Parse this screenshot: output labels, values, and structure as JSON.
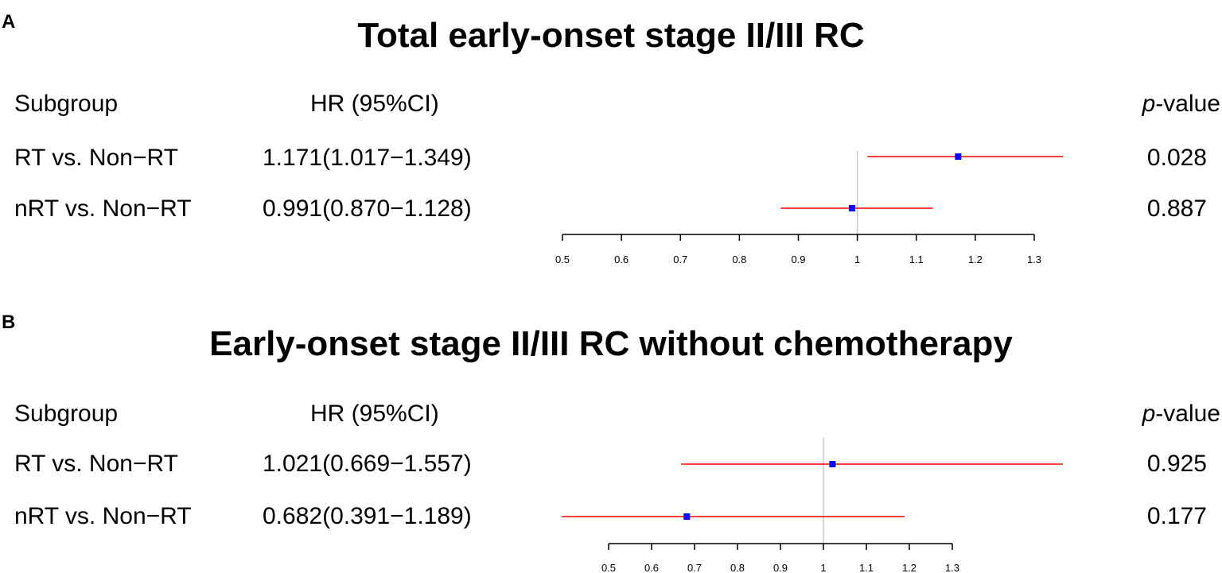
{
  "chart_data": [
    {
      "type": "forest",
      "panel": "A",
      "title": "Total early-onset stage II/III RC",
      "headers": {
        "subgroup": "Subgroup",
        "hr": "HR (95%CI)",
        "p_prefix": "p",
        "p_suffix": "-value"
      },
      "rows": [
        {
          "subgroup": "RT vs. Non−RT",
          "hr_text": "1.171(1.017−1.349)",
          "hr": 1.171,
          "lower": 1.017,
          "upper": 1.349,
          "p": "0.028"
        },
        {
          "subgroup": "nRT vs. Non−RT",
          "hr_text": "0.991(0.870−1.128)",
          "hr": 0.991,
          "lower": 0.87,
          "upper": 1.128,
          "p": "0.887"
        }
      ],
      "xaxis": {
        "ticks": [
          0.5,
          0.6,
          0.7,
          0.8,
          0.9,
          1,
          1.1,
          1.2,
          1.3
        ],
        "reference_line": 1
      }
    },
    {
      "type": "forest",
      "panel": "B",
      "title": "Early-onset stage II/III RC without chemotherapy",
      "headers": {
        "subgroup": "Subgroup",
        "hr": "HR (95%CI)",
        "p_prefix": "p",
        "p_suffix": "-value"
      },
      "rows": [
        {
          "subgroup": "RT vs. Non−RT",
          "hr_text": "1.021(0.669−1.557)",
          "hr": 1.021,
          "lower": 0.669,
          "upper": 1.557,
          "p": "0.925"
        },
        {
          "subgroup": "nRT vs. Non−RT",
          "hr_text": "0.682(0.391−1.189)",
          "hr": 0.682,
          "lower": 0.391,
          "upper": 1.189,
          "p": "0.177"
        }
      ],
      "xaxis": {
        "ticks": [
          0.5,
          0.6,
          0.7,
          0.8,
          0.9,
          1,
          1.1,
          1.2,
          1.3
        ],
        "reference_line": 1
      }
    }
  ],
  "colors": {
    "ci_line": "#ff0000",
    "point": "#0000ff",
    "reference_line": "#c8c8c8",
    "axis": "#000000"
  }
}
